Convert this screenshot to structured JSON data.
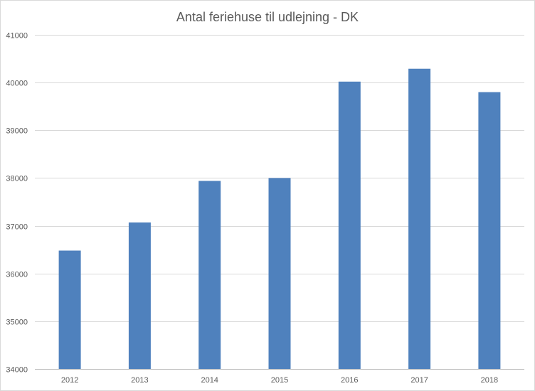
{
  "chart_data": {
    "type": "bar",
    "title": "Antal feriehuse til udlejning - DK",
    "categories": [
      "2012",
      "2013",
      "2014",
      "2015",
      "2016",
      "2017",
      "2018"
    ],
    "values": [
      36480,
      37070,
      37940,
      38000,
      40020,
      40290,
      39800
    ],
    "ylim": [
      34000,
      41000
    ],
    "yticks": [
      34000,
      35000,
      36000,
      37000,
      38000,
      39000,
      40000,
      41000
    ],
    "grid": true,
    "legend": "none",
    "xlabel": "",
    "ylabel": "",
    "colors": {
      "bar": "#4f81bd",
      "grid": "#d9d9d9",
      "axis": "#bfbfbf",
      "text": "#595959"
    }
  }
}
